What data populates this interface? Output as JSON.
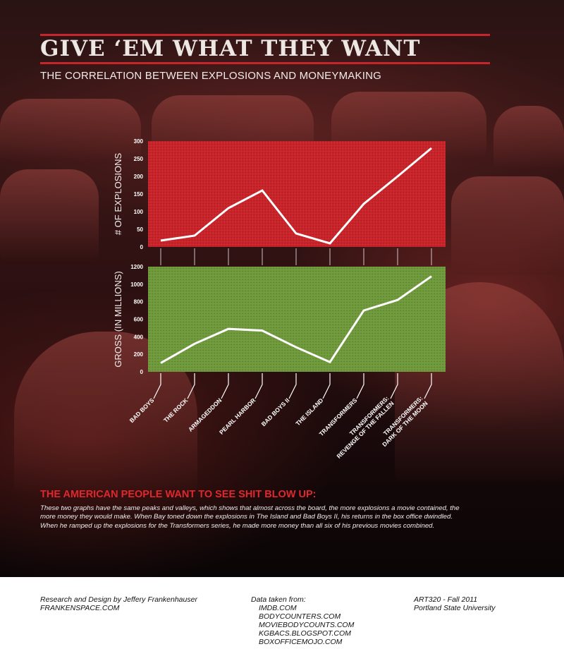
{
  "title": "GIVE ‘EM WHAT THEY WANT",
  "subtitle": "THE CORRELATION BETWEEN EXPLOSIONS AND MONEYMAKING",
  "chart_data": [
    {
      "type": "line",
      "ylabel": "# OF EXPLOSIONS",
      "ylim": [
        0,
        300
      ],
      "yticks": [
        0,
        50,
        100,
        150,
        200,
        250,
        300
      ],
      "panel_color": "#c8242a",
      "line_color": "#ffffff",
      "categories": [
        "BAD BOYS",
        "THE ROCK",
        "ARMAGEDDON",
        "PEARL HARBOR",
        "BAD BOYS II",
        "THE ISLAND",
        "TRANSFORMERS",
        "TRANSFORMERS: REVENGE OF THE FALLEN",
        "TRANSFORMERS: DARK OF THE MOON"
      ],
      "values": [
        18,
        32,
        110,
        160,
        38,
        10,
        122,
        200,
        280
      ]
    },
    {
      "type": "line",
      "ylabel": "GROSS (IN MILLIONS)",
      "ylim": [
        0,
        1200
      ],
      "yticks": [
        0,
        200,
        400,
        600,
        800,
        1000,
        1200
      ],
      "panel_color": "#6f9a3c",
      "line_color": "#ffffff",
      "categories": [
        "BAD BOYS",
        "THE ROCK",
        "ARMAGEDDON",
        "PEARL HARBOR",
        "BAD BOYS II",
        "THE ISLAND",
        "TRANSFORMERS",
        "TRANSFORMERS: REVENGE OF THE FALLEN",
        "TRANSFORMERS: DARK OF THE MOON"
      ],
      "values": [
        100,
        320,
        490,
        470,
        280,
        110,
        700,
        820,
        1090
      ]
    }
  ],
  "category_labels": [
    {
      "lines": [
        "BAD BOYS"
      ]
    },
    {
      "lines": [
        "THE ROCK"
      ]
    },
    {
      "lines": [
        "ARMAGEDDON"
      ]
    },
    {
      "lines": [
        "PEARL HARBOR"
      ]
    },
    {
      "lines": [
        "BAD BOYS II"
      ]
    },
    {
      "lines": [
        "THE ISLAND"
      ]
    },
    {
      "lines": [
        "TRANSFORMERS"
      ]
    },
    {
      "lines": [
        "TRANSFORMERS:",
        "REVENGE OF THE FALLEN"
      ]
    },
    {
      "lines": [
        "TRANSFORMERS:",
        "DARK OF THE MOON"
      ]
    }
  ],
  "headline": "THE AMERICAN PEOPLE WANT TO SEE SHIT BLOW UP:",
  "body_text": "These two graphs have the same peaks and valleys, which shows that almost across the board, the more explosions a movie contained, the more money they would make. When Bay toned down the explosions in The Island and Bad Boys II, his returns in the box office dwindled. When he ramped up the explosions for the Transformers series, he made more money than all six of his previous movies combined.",
  "footer": {
    "credit_line": "Research and Design by Jeffery Frankenhauser",
    "credit_site": "FRANKENSPACE.COM",
    "sources_heading": "Data taken from:",
    "sources": [
      "IMDB.COM",
      "BODYCOUNTERS.COM",
      "MOVIEBODYCOUNTS.COM",
      "KGBACS.BLOGSPOT.COM",
      "BOXOFFICEMOJO.COM"
    ],
    "course": "ART320 - Fall 2011",
    "school": "Portland State University"
  }
}
